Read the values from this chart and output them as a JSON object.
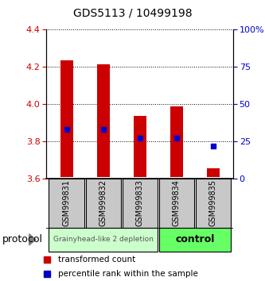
{
  "title": "GDS5113 / 10499198",
  "samples": [
    "GSM999831",
    "GSM999832",
    "GSM999833",
    "GSM999834",
    "GSM999835"
  ],
  "bar_bottoms": [
    3.607,
    3.607,
    3.607,
    3.607,
    3.607
  ],
  "bar_tops": [
    4.235,
    4.215,
    3.935,
    3.985,
    3.655
  ],
  "percentile_values": [
    3.862,
    3.862,
    3.815,
    3.815,
    3.775
  ],
  "ylim": [
    3.6,
    4.4
  ],
  "y_ticks_left": [
    3.6,
    3.8,
    4.0,
    4.2,
    4.4
  ],
  "y_ticks_right": [
    0,
    25,
    50,
    75,
    100
  ],
  "y_ticks_right_labels": [
    "0",
    "25",
    "50",
    "75",
    "100%"
  ],
  "bar_color": "#cc0000",
  "percentile_color": "#0000cc",
  "group1_samples": [
    0,
    1,
    2
  ],
  "group2_samples": [
    3,
    4
  ],
  "group1_label": "Grainyhead-like 2 depletion",
  "group2_label": "control",
  "group1_color": "#ccffcc",
  "group2_color": "#66ff66",
  "sample_box_color": "#c8c8c8",
  "protocol_label": "protocol",
  "legend_tc": "transformed count",
  "legend_pr": "percentile rank within the sample",
  "tick_color_left": "#cc0000",
  "tick_color_right": "#0000cc",
  "bar_width": 0.35
}
